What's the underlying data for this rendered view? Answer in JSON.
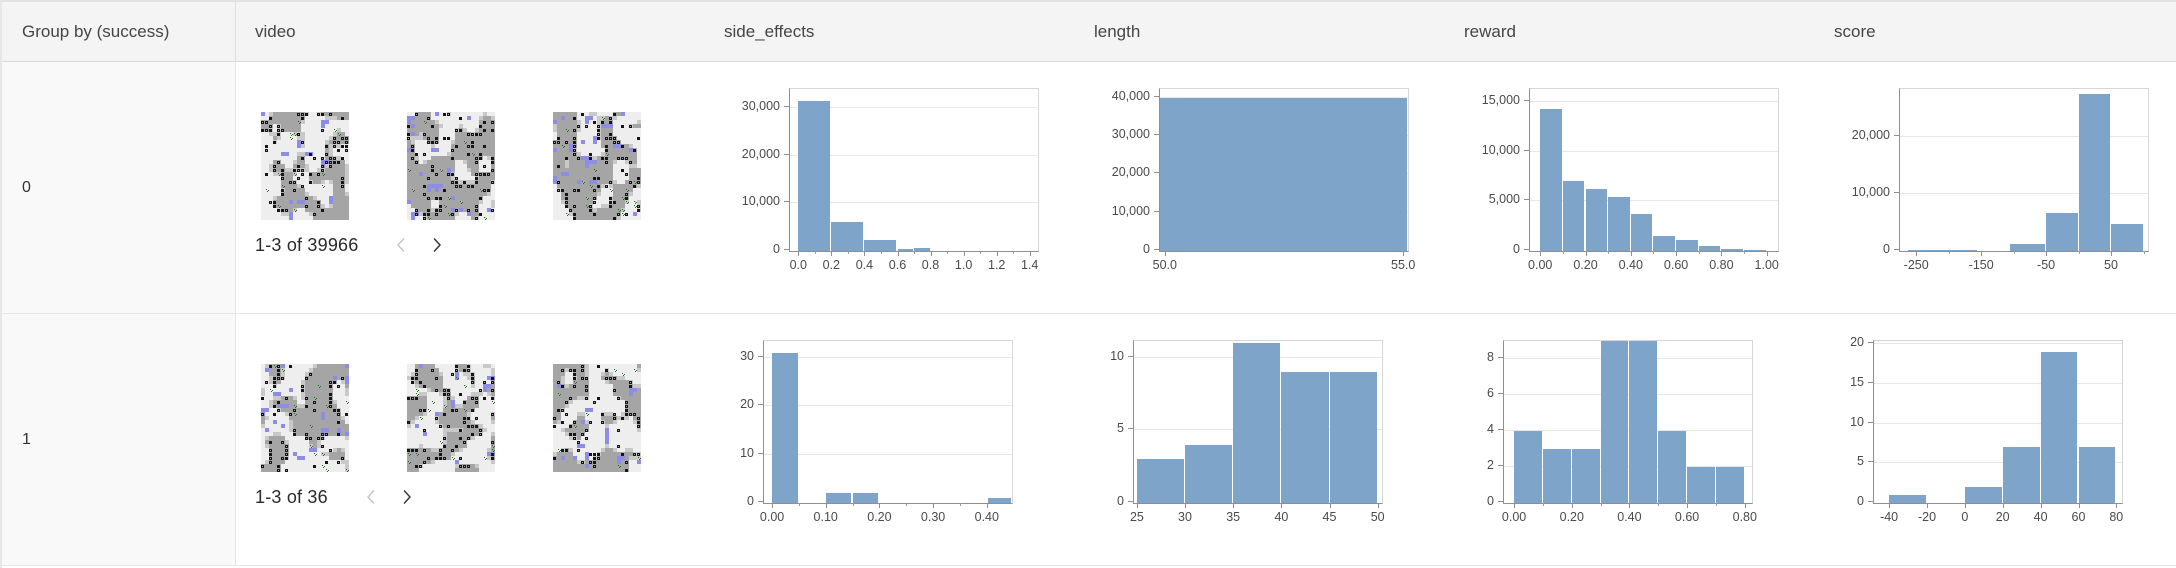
{
  "table": {
    "headers": [
      {
        "id": "group",
        "label": "Group by (success)"
      },
      {
        "id": "video",
        "label": "video"
      },
      {
        "id": "side_effects",
        "label": "side_effects"
      },
      {
        "id": "length",
        "label": "length"
      },
      {
        "id": "reward",
        "label": "reward"
      },
      {
        "id": "score",
        "label": "score"
      }
    ]
  },
  "colors": {
    "histogram_bar": "#7fa4c9",
    "header_bg": "#f4f4f4",
    "grid_line": "#e7e7e7",
    "axis_line": "#8f8f8f",
    "disabled_chevron": "#c7c7c7",
    "enabled_chevron": "#3d3d3d"
  },
  "rows": [
    {
      "group": "0",
      "video": {
        "pagination": "1-3 of 39966",
        "prev_enabled": false,
        "next_enabled": true
      },
      "charts": {
        "side_effects": {
          "type": "histogram",
          "title": "side_effects",
          "xmin": -0.05,
          "xmax": 1.45,
          "ymax": 34000,
          "yticks": [
            [
              0,
              "0"
            ],
            [
              10000,
              "10,000"
            ],
            [
              20000,
              "20,000"
            ],
            [
              30000,
              "30,000"
            ]
          ],
          "xticks": [
            [
              0,
              "0.0"
            ],
            [
              0.2,
              "0.2"
            ],
            [
              0.4,
              "0.4"
            ],
            [
              0.6,
              "0.6"
            ],
            [
              0.8,
              "0.8"
            ],
            [
              1,
              "1.0"
            ],
            [
              1.2,
              "1.2"
            ],
            [
              1.4,
              "1.4"
            ]
          ],
          "xminor": [
            0.1,
            0.3,
            0.5,
            0.7,
            0.9,
            1.1,
            1.3
          ],
          "bars": [
            [
              0,
              0.2,
              31500
            ],
            [
              0.2,
              0.4,
              6200
            ],
            [
              0.4,
              0.6,
              2400
            ],
            [
              0.6,
              0.7,
              450
            ],
            [
              0.7,
              0.8,
              600
            ]
          ]
        },
        "length": {
          "type": "histogram",
          "title": "length",
          "xmin": 49.9,
          "xmax": 55.1,
          "ymax": 42300,
          "yticks": [
            [
              0,
              "0"
            ],
            [
              10000,
              "10,000"
            ],
            [
              20000,
              "20,000"
            ],
            [
              30000,
              "30,000"
            ],
            [
              40000,
              "40,000"
            ]
          ],
          "xticks": [
            [
              50,
              "50.0"
            ],
            [
              55,
              "55.0"
            ]
          ],
          "xminor": [],
          "bars": [
            [
              49.9,
              55.1,
              40000
            ]
          ]
        },
        "reward": {
          "type": "histogram",
          "title": "reward",
          "xmin": -0.045,
          "xmax": 1.05,
          "ymax": 16300,
          "yticks": [
            [
              0,
              "0"
            ],
            [
              5000,
              "5,000"
            ],
            [
              10000,
              "10,000"
            ],
            [
              15000,
              "15,000"
            ]
          ],
          "xticks": [
            [
              0,
              "0.00"
            ],
            [
              0.2,
              "0.20"
            ],
            [
              0.4,
              "0.40"
            ],
            [
              0.6,
              "0.60"
            ],
            [
              0.8,
              "0.80"
            ],
            [
              1,
              "1.00"
            ]
          ],
          "xminor": [
            0.1,
            0.3,
            0.5,
            0.7,
            0.9
          ],
          "bars": [
            [
              0,
              0.1,
              14300
            ],
            [
              0.1,
              0.2,
              7000
            ],
            [
              0.2,
              0.3,
              6200
            ],
            [
              0.3,
              0.4,
              5400
            ],
            [
              0.4,
              0.5,
              3700
            ],
            [
              0.5,
              0.6,
              1500
            ],
            [
              0.6,
              0.7,
              1100
            ],
            [
              0.7,
              0.8,
              500
            ],
            [
              0.8,
              0.9,
              200
            ],
            [
              0.9,
              1,
              150
            ]
          ]
        },
        "score": {
          "type": "histogram",
          "title": "score",
          "xmin": -275,
          "xmax": 107,
          "ymax": 28400,
          "yticks": [
            [
              0,
              "0"
            ],
            [
              10000,
              "10,000"
            ],
            [
              20000,
              "20,000"
            ]
          ],
          "xticks": [
            [
              -250,
              "-250"
            ],
            [
              -150,
              "-150"
            ],
            [
              -50,
              "-50"
            ],
            [
              50,
              "50"
            ]
          ],
          "xminor": [
            -200,
            -100,
            0,
            100
          ],
          "bars": [
            [
              -262,
              -155,
              130
            ],
            [
              -105,
              -50,
              1300
            ],
            [
              -50,
              0,
              6700
            ],
            [
              0,
              50,
              27500
            ],
            [
              50,
              100,
              4700
            ]
          ]
        }
      }
    },
    {
      "group": "1",
      "video": {
        "pagination": "1-3 of 36",
        "prev_enabled": false,
        "next_enabled": true
      },
      "charts": {
        "side_effects": {
          "type": "histogram",
          "title": "side_effects",
          "xmin": -0.015,
          "xmax": 0.447,
          "ymax": 33.5,
          "yticks": [
            [
              0,
              "0"
            ],
            [
              10,
              "10"
            ],
            [
              20,
              "20"
            ],
            [
              30,
              "30"
            ]
          ],
          "xticks": [
            [
              0,
              "0.00"
            ],
            [
              0.1,
              "0.10"
            ],
            [
              0.2,
              "0.20"
            ],
            [
              0.3,
              "0.30"
            ],
            [
              0.4,
              "0.40"
            ]
          ],
          "xminor": [
            0.05,
            0.15,
            0.25,
            0.35
          ],
          "bars": [
            [
              0,
              0.05,
              31
            ],
            [
              0.1,
              0.15,
              2
            ],
            [
              0.15,
              0.2,
              2
            ],
            [
              0.403,
              0.447,
              1
            ]
          ]
        },
        "length": {
          "type": "histogram",
          "title": "length",
          "xmin": 24.7,
          "xmax": 50.45,
          "ymax": 11.15,
          "yticks": [
            [
              0,
              "0"
            ],
            [
              5,
              "5"
            ],
            [
              10,
              "10"
            ]
          ],
          "xticks": [
            [
              25,
              "25"
            ],
            [
              30,
              "30"
            ],
            [
              35,
              "35"
            ],
            [
              40,
              "40"
            ],
            [
              45,
              "45"
            ],
            [
              50,
              "50"
            ]
          ],
          "xminor": [],
          "bars": [
            [
              25,
              30,
              3
            ],
            [
              30,
              35,
              4
            ],
            [
              35,
              40,
              11
            ],
            [
              40,
              45,
              9
            ],
            [
              45,
              50,
              9
            ]
          ]
        },
        "reward": {
          "type": "histogram",
          "title": "reward",
          "xmin": -0.035,
          "xmax": 0.825,
          "ymax": 9,
          "yticks": [
            [
              0,
              "0"
            ],
            [
              2,
              "2"
            ],
            [
              4,
              "4"
            ],
            [
              6,
              "6"
            ],
            [
              8,
              "8"
            ]
          ],
          "xticks": [
            [
              0,
              "0.00"
            ],
            [
              0.2,
              "0.20"
            ],
            [
              0.4,
              "0.40"
            ],
            [
              0.6,
              "0.60"
            ],
            [
              0.8,
              "0.80"
            ]
          ],
          "xminor": [
            0.1,
            0.3,
            0.5,
            0.7
          ],
          "bars": [
            [
              0,
              0.1,
              4
            ],
            [
              0.1,
              0.2,
              3
            ],
            [
              0.2,
              0.3,
              3
            ],
            [
              0.3,
              0.4,
              9
            ],
            [
              0.4,
              0.5,
              9
            ],
            [
              0.5,
              0.6,
              4
            ],
            [
              0.6,
              0.7,
              2
            ],
            [
              0.7,
              0.8,
              2
            ]
          ]
        },
        "score": {
          "type": "histogram",
          "title": "score",
          "xmin": -48,
          "xmax": 83,
          "ymax": 20.4,
          "yticks": [
            [
              0,
              "0"
            ],
            [
              5,
              "5"
            ],
            [
              10,
              "10"
            ],
            [
              15,
              "15"
            ],
            [
              20,
              "20"
            ]
          ],
          "xticks": [
            [
              -40,
              "-40"
            ],
            [
              -20,
              "-20"
            ],
            [
              0,
              "0"
            ],
            [
              20,
              "20"
            ],
            [
              40,
              "40"
            ],
            [
              60,
              "60"
            ],
            [
              80,
              "80"
            ]
          ],
          "xminor": [],
          "bars": [
            [
              -40,
              -20,
              1
            ],
            [
              0,
              20,
              2
            ],
            [
              20,
              40,
              7
            ],
            [
              40,
              60,
              19
            ],
            [
              60,
              80,
              7
            ]
          ]
        }
      }
    }
  ]
}
